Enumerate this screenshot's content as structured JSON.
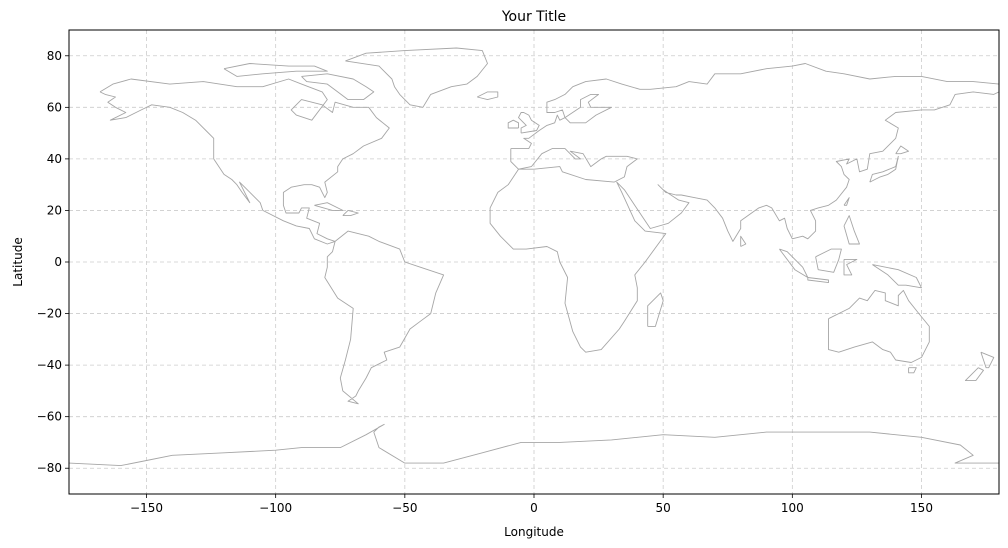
{
  "map": {
    "title": "Your Title",
    "xlabel": "Longitude",
    "ylabel": "Latitude",
    "projection": "equirectangular",
    "xlim": [
      -180,
      180
    ],
    "ylim": [
      -90,
      90
    ],
    "x_ticks": [
      -150,
      -100,
      -50,
      0,
      50,
      100,
      150
    ],
    "y_ticks": [
      -80,
      -60,
      -40,
      -20,
      0,
      20,
      40,
      60,
      80
    ],
    "grid": true,
    "grid_style": "dashed",
    "colors": {
      "coastline": "#a6a6a6",
      "grid": "#cccccc",
      "frame": "#000000",
      "background": "#ffffff"
    },
    "features": [
      "coastlines"
    ]
  }
}
